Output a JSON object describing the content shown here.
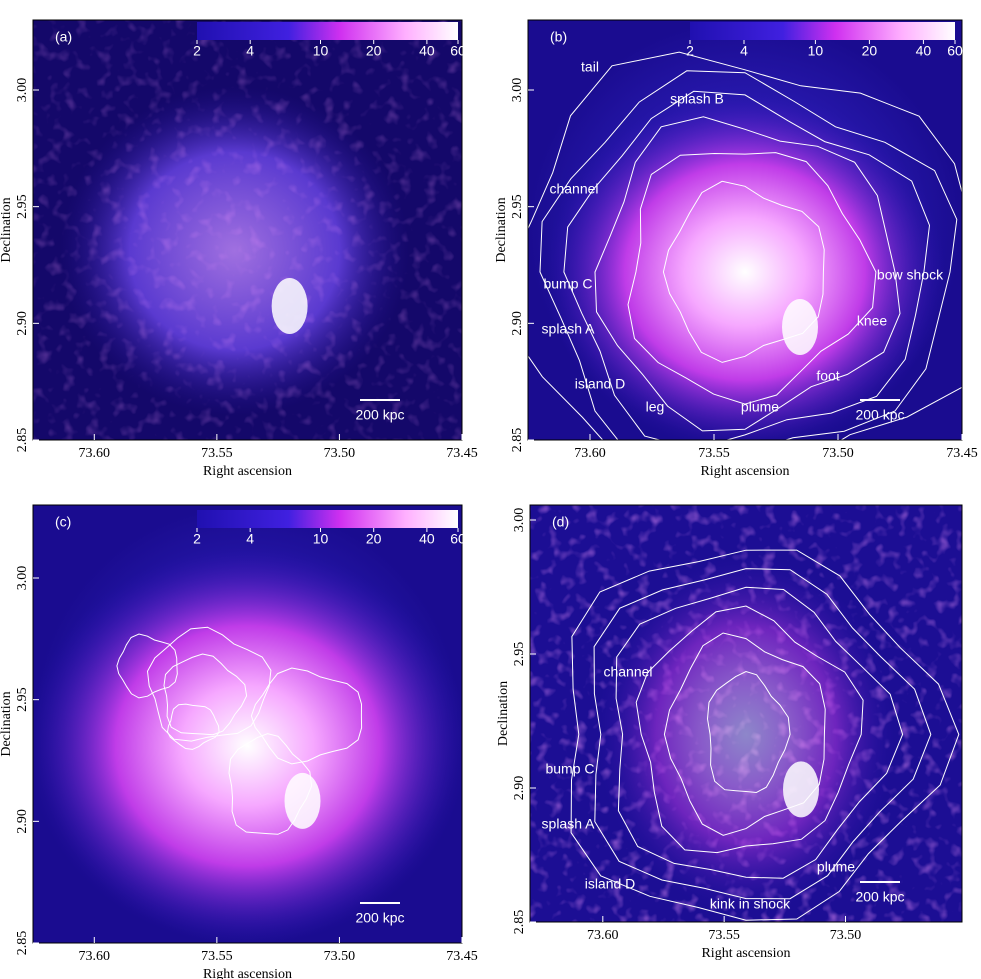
{
  "chart_data": [
    {
      "type": "image",
      "label": "(a)",
      "x_label": "Right ascension",
      "y_label": "Declination",
      "xlim": [
        73.625,
        73.45
      ],
      "ylim": [
        2.85,
        3.03
      ],
      "xticks": [
        {
          "value": 73.6,
          "label": "73.60"
        },
        73.55,
        {
          "value": 73.5,
          "label": "73.50"
        },
        73.45
      ],
      "yticks": [
        2.85,
        {
          "value": 2.9,
          "label": "2.90"
        },
        2.95,
        {
          "value": 3,
          "label": "3.00"
        }
      ],
      "colorbar": {
        "ticks": [
          2,
          4,
          10,
          20,
          40,
          60
        ],
        "lim": [
          2,
          60
        ],
        "scale": "log"
      },
      "scalebar": "200 kpc",
      "annotations": []
    },
    {
      "type": "image",
      "label": "(b)",
      "x_label": "Right ascension",
      "y_label": "Declination",
      "xlim": [
        73.625,
        73.45
      ],
      "ylim": [
        2.85,
        3.03
      ],
      "xticks": [
        {
          "value": 73.6,
          "label": "73.60"
        },
        73.55,
        {
          "value": 73.5,
          "label": "73.50"
        },
        73.45
      ],
      "yticks": [
        2.85,
        {
          "value": 2.9,
          "label": "2.90"
        },
        2.95,
        {
          "value": 3,
          "label": "3.00"
        }
      ],
      "colorbar": {
        "ticks": [
          2,
          4,
          10,
          20,
          40,
          60
        ],
        "lim": [
          2,
          60
        ],
        "scale": "log"
      },
      "scalebar": "200 kpc",
      "annotations": [
        "tail",
        "splash B",
        "channel",
        "bump C",
        "bow shock",
        "knee",
        "splash A",
        "island D",
        "foot",
        "leg",
        "plume"
      ]
    },
    {
      "type": "image",
      "label": "(c)",
      "x_label": "Right ascension",
      "y_label": "Declination",
      "xlim": [
        73.625,
        73.45
      ],
      "ylim": [
        2.85,
        3.03
      ],
      "xticks": [
        {
          "value": 73.6,
          "label": "73.60"
        },
        73.55,
        {
          "value": 73.5,
          "label": "73.50"
        },
        73.45
      ],
      "yticks": [
        2.85,
        {
          "value": 2.9,
          "label": "2.90"
        },
        2.95,
        {
          "value": 3,
          "label": "3.00"
        }
      ],
      "colorbar": {
        "ticks": [
          2,
          4,
          10,
          20,
          40,
          60
        ],
        "lim": [
          2,
          60
        ],
        "scale": "log"
      },
      "scalebar": "200 kpc",
      "annotations": []
    },
    {
      "type": "image",
      "label": "(d)",
      "x_label": "Right ascension",
      "y_label": "Declination",
      "xlim": [
        73.63,
        73.452
      ],
      "ylim": [
        2.85,
        3.0056
      ],
      "xticks": [
        {
          "value": 73.6,
          "label": "73.60"
        },
        73.55,
        {
          "value": 73.5,
          "label": "73.50"
        }
      ],
      "yticks": [
        2.85,
        {
          "value": 2.9,
          "label": "2.90"
        },
        2.95,
        {
          "value": 3,
          "label": "3.00"
        }
      ],
      "scalebar": "200 kpc",
      "annotations": [
        "channel",
        "bump C",
        "splash A",
        "island D",
        "plume",
        "kink in shock"
      ]
    }
  ]
}
